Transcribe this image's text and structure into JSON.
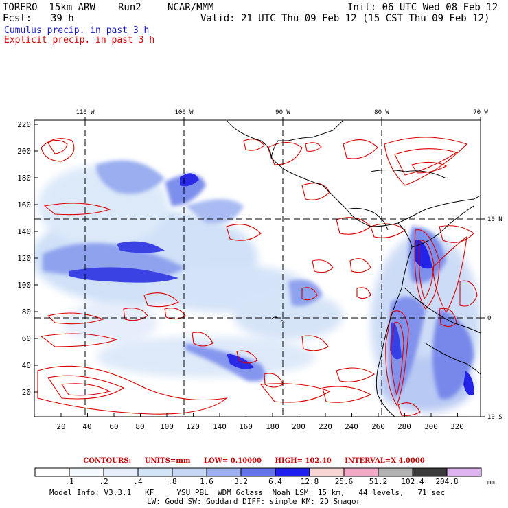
{
  "header": {
    "model": "TORERO  15km ARW",
    "run": "Run2",
    "org": "NCAR/MMM",
    "init": "Init: 06 UTC Wed 08 Feb 12",
    "fcst_label": "Fcst:",
    "fcst_value": "39 h",
    "valid": "Valid: 21 UTC Thu 09 Feb 12 (15 CST Thu 09 Feb 12)"
  },
  "fields": {
    "cumulus": "Cumulus precip. in past 3 h",
    "explicit": "Explicit precip. in past 3 h",
    "cumulus_color": "#1a1acc",
    "explicit_color": "#dd0000"
  },
  "top_axis": [
    "110 W",
    "100 W",
    "90 W",
    "80 W",
    "70 W"
  ],
  "right_axis": [
    "10 N",
    "0",
    "10 S"
  ],
  "left_axis": [
    "220",
    "200",
    "180",
    "160",
    "140",
    "120",
    "100",
    "80",
    "60",
    "40",
    "20"
  ],
  "bottom_axis": [
    "20",
    "40",
    "60",
    "80",
    "100",
    "120",
    "140",
    "160",
    "180",
    "200",
    "220",
    "240",
    "260",
    "280",
    "300",
    "320"
  ],
  "contours": {
    "label": "CONTOURS:",
    "units": "UNITS=mm",
    "low": "LOW= 0.10000",
    "high": "HIGH= 102.40",
    "interval": "INTERVAL=X  4.0000"
  },
  "colorbar": {
    "labels": [
      ".1",
      ".2",
      ".4",
      ".8",
      "1.6",
      "3.2",
      "6.4",
      "12.8",
      "25.6",
      "51.2",
      "102.4",
      "204.8"
    ],
    "colors": [
      "#ffffff",
      "#f4f8ff",
      "#e6eefb",
      "#d2e4f8",
      "#c3d6f5",
      "#9aaef0",
      "#6674ea",
      "#2020ee",
      "#f7d4d4",
      "#f4a8c8",
      "#b0b0b0",
      "#3a3a3a",
      "#ddb4f0"
    ],
    "units": "mm"
  },
  "model_info": {
    "line1": "Model Info: V3.3.1   KF     YSU PBL  WDM 6class  Noah LSM  15 km,   44 levels,   71 sec",
    "line2": "LW: Godd SW: Goddard DIFF: simple KM: 2D Smagor"
  }
}
